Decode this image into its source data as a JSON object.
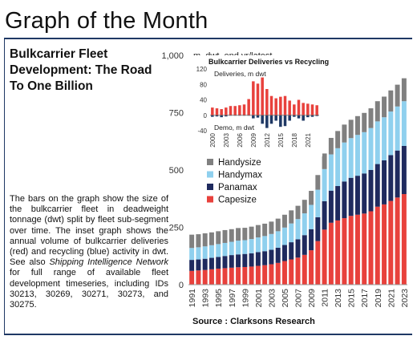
{
  "header": {
    "title": "Graph of the Month"
  },
  "subtitle": "Bulkcarrier Fleet Development: The Road To One Billion",
  "description": {
    "p1": "The bars on the graph show the size of the bulkcarrier fleet in deadweight tonnage (dwt) split by fleet sub-segment over time. The inset graph shows the annual volume of bulkcarrier deliveries (red) and recycling (blue) activity in dwt. See also ",
    "link": "Shipping Intelligence Network",
    "p2": " for full range of available fleet development timeseries, including IDs 30213, 30269, 30271, 30273, and 30275."
  },
  "source": "Source : Clarksons Research",
  "colors": {
    "capesize": "#e8413c",
    "panamax": "#1f2a5e",
    "handymax": "#8fd0ee",
    "handysize": "#808080",
    "deliveries": "#e8413c",
    "demo": "#1f3864",
    "rule": "#1f3864"
  },
  "chart_data": [
    {
      "type": "bar",
      "stacked": true,
      "ylabel": "m. dwt, end yr/latest",
      "ylim": [
        0,
        1000
      ],
      "yticks": [
        0,
        250,
        500,
        750,
        1000
      ],
      "ytick_labels": [
        "0",
        "250",
        "500",
        "750",
        "1,000"
      ],
      "categories": [
        "1991",
        "1992",
        "1993",
        "1994",
        "1995",
        "1996",
        "1997",
        "1998",
        "1999",
        "2000",
        "2001",
        "2002",
        "2003",
        "2004",
        "2005",
        "2006",
        "2007",
        "2008",
        "2009",
        "2010",
        "2011",
        "2012",
        "2013",
        "2014",
        "2015",
        "2016",
        "2017",
        "2018",
        "2019",
        "2020",
        "2021",
        "2022",
        "2023"
      ],
      "xtick_labels": [
        "1991",
        "1993",
        "1995",
        "1997",
        "1999",
        "2001",
        "2003",
        "2005",
        "2007",
        "2009",
        "2011",
        "2013",
        "2015",
        "2017",
        "2019",
        "2021",
        "2023"
      ],
      "legend_position": "left-center",
      "series": [
        {
          "name": "Capesize",
          "values": [
            60,
            62,
            64,
            67,
            70,
            72,
            74,
            76,
            77,
            79,
            82,
            85,
            89,
            95,
            103,
            110,
            118,
            130,
            150,
            190,
            240,
            270,
            280,
            290,
            300,
            305,
            310,
            320,
            340,
            350,
            365,
            380,
            395
          ]
        },
        {
          "name": "Panamax",
          "values": [
            48,
            48,
            49,
            50,
            51,
            53,
            55,
            56,
            57,
            58,
            60,
            61,
            63,
            66,
            70,
            75,
            80,
            86,
            92,
            104,
            124,
            140,
            150,
            160,
            166,
            170,
            175,
            180,
            186,
            192,
            200,
            205,
            210
          ]
        },
        {
          "name": "Handymax",
          "values": [
            52,
            53,
            54,
            55,
            56,
            57,
            58,
            60,
            60,
            62,
            64,
            66,
            69,
            72,
            76,
            82,
            88,
            95,
            106,
            120,
            140,
            158,
            165,
            170,
            173,
            178,
            180,
            183,
            186,
            188,
            190,
            192,
            195
          ]
        },
        {
          "name": "Handysize",
          "values": [
            58,
            57,
            57,
            56,
            56,
            56,
            55,
            55,
            54,
            54,
            54,
            54,
            54,
            55,
            56,
            57,
            58,
            59,
            61,
            64,
            68,
            72,
            75,
            78,
            80,
            82,
            84,
            86,
            88,
            90,
            92,
            95,
            100
          ]
        }
      ]
    },
    {
      "type": "bar",
      "title": "Bulkcarrier Deliveries vs Recycling",
      "ylim": [
        -40,
        120
      ],
      "yticks": [
        -40,
        0,
        40,
        80,
        120
      ],
      "ytick_labels": [
        "-40",
        "0",
        "40",
        "80",
        "120"
      ],
      "categories": [
        "2000",
        "2001",
        "2002",
        "2003",
        "2004",
        "2005",
        "2006",
        "2007",
        "2008",
        "2009",
        "2010",
        "2011",
        "2012",
        "2013",
        "2014",
        "2015",
        "2016",
        "2017",
        "2018",
        "2019",
        "2020",
        "2021",
        "2022",
        "2023"
      ],
      "xtick_labels": [
        "2000",
        "2003",
        "2006",
        "2009",
        "2012",
        "2015",
        "2018",
        "2021"
      ],
      "annotations": [
        "Deliveries, m dwt",
        "Demo, m dwt"
      ],
      "series": [
        {
          "name": "Deliveries",
          "values": [
            20,
            18,
            16,
            20,
            24,
            24,
            26,
            28,
            42,
            88,
            82,
            98,
            68,
            50,
            44,
            48,
            50,
            38,
            28,
            40,
            32,
            30,
            28,
            26
          ]
        },
        {
          "name": "Demo",
          "values": [
            -4,
            -3,
            -5,
            -3,
            -1,
            -1,
            -1,
            -1,
            -1,
            -8,
            -6,
            -22,
            -33,
            -22,
            -14,
            -30,
            -28,
            -14,
            -4,
            -8,
            -14,
            -5,
            -4,
            -2
          ]
        }
      ]
    }
  ]
}
